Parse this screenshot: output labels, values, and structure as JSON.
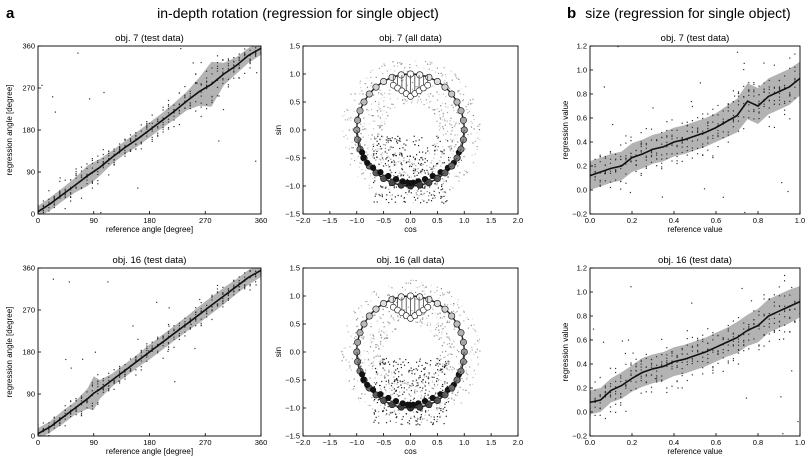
{
  "figure": {
    "panel_a_letter": "a",
    "panel_a_heading": "in-depth rotation (regression for single object)",
    "panel_b_letter": "b",
    "panel_b_heading": "size (regression for single object)"
  },
  "chart_data": [
    {
      "id": "a1",
      "type": "line",
      "title": "obj. 7 (test data)",
      "xlabel": "reference angle [degree]",
      "ylabel": "regression angle [degree]",
      "xlim": [
        0,
        360
      ],
      "ylim": [
        0,
        360
      ],
      "xticks": [
        "0",
        "90",
        "180",
        "270",
        "360"
      ],
      "yticks": [
        "0",
        "90",
        "180",
        "270",
        "360"
      ],
      "x": [
        0,
        20,
        40,
        60,
        80,
        100,
        120,
        140,
        160,
        180,
        200,
        220,
        240,
        260,
        280,
        300,
        320,
        340,
        360
      ],
      "series": [
        {
          "values": [
            5,
            22,
            42,
            62,
            82,
            100,
            122,
            142,
            160,
            180,
            200,
            220,
            242,
            262,
            278,
            300,
            318,
            340,
            355
          ]
        }
      ],
      "band_width": [
        12,
        14,
        14,
        16,
        22,
        18,
        14,
        14,
        16,
        16,
        16,
        18,
        20,
        30,
        48,
        24,
        18,
        16,
        14
      ],
      "grid": false
    },
    {
      "id": "a2",
      "type": "scatter",
      "title": "obj. 7 (all data)",
      "xlabel": "cos",
      "ylabel": "sin",
      "xlim": [
        -2.0,
        2.0
      ],
      "ylim": [
        -1.5,
        1.5
      ],
      "xticks": [
        "−2.0",
        "−1.5",
        "−1.0",
        "−0.5",
        "0.0",
        "0.5",
        "1.0",
        "1.5",
        "2.0"
      ],
      "yticks": [
        "−1.5",
        "−1.0",
        "−0.5",
        "0.0",
        "0.5",
        "1.0",
        "1.5"
      ],
      "circle_radius": 1.0,
      "grid": false
    },
    {
      "id": "b1",
      "type": "line",
      "title": "obj. 7 (test data)",
      "xlabel": "reference value",
      "ylabel": "regression value",
      "xlim": [
        0,
        1
      ],
      "ylim": [
        -0.2,
        1.2
      ],
      "xticks": [
        "0.0",
        "0.2",
        "0.4",
        "0.6",
        "0.8",
        "1.0"
      ],
      "yticks": [
        "−0.2",
        "0.0",
        "0.2",
        "0.4",
        "0.6",
        "0.8",
        "1.0",
        "1.2"
      ],
      "x": [
        0.0,
        0.05,
        0.1,
        0.15,
        0.2,
        0.25,
        0.3,
        0.35,
        0.4,
        0.45,
        0.5,
        0.55,
        0.6,
        0.65,
        0.7,
        0.75,
        0.8,
        0.85,
        0.9,
        0.95,
        1.0
      ],
      "series": [
        {
          "values": [
            0.12,
            0.15,
            0.18,
            0.2,
            0.27,
            0.3,
            0.34,
            0.36,
            0.4,
            0.42,
            0.45,
            0.48,
            0.52,
            0.57,
            0.62,
            0.74,
            0.7,
            0.78,
            0.82,
            0.86,
            0.93
          ]
        }
      ],
      "band_width": [
        0.12,
        0.12,
        0.12,
        0.12,
        0.12,
        0.12,
        0.12,
        0.12,
        0.12,
        0.12,
        0.12,
        0.12,
        0.12,
        0.13,
        0.14,
        0.15,
        0.15,
        0.15,
        0.15,
        0.15,
        0.14
      ],
      "grid": false
    },
    {
      "id": "a3",
      "type": "line",
      "title": "obj. 16 (test data)",
      "xlabel": "reference angle [degree]",
      "ylabel": "regression angle [degree]",
      "xlim": [
        0,
        360
      ],
      "ylim": [
        0,
        360
      ],
      "xticks": [
        "0",
        "90",
        "180",
        "270",
        "360"
      ],
      "yticks": [
        "0",
        "90",
        "180",
        "270",
        "360"
      ],
      "x": [
        0,
        20,
        40,
        60,
        80,
        90,
        100,
        120,
        140,
        160,
        180,
        200,
        220,
        240,
        260,
        280,
        300,
        320,
        340,
        360
      ],
      "series": [
        {
          "values": [
            5,
            20,
            40,
            60,
            80,
            92,
            100,
            120,
            140,
            160,
            180,
            200,
            220,
            240,
            260,
            280,
            300,
            320,
            340,
            355
          ]
        }
      ],
      "band_width": [
        12,
        12,
        14,
        14,
        22,
        36,
        20,
        14,
        14,
        14,
        16,
        16,
        16,
        16,
        18,
        18,
        18,
        16,
        16,
        14
      ],
      "grid": false
    },
    {
      "id": "a4",
      "type": "scatter",
      "title": "obj. 16 (all data)",
      "xlabel": "cos",
      "ylabel": "sin",
      "xlim": [
        -2.0,
        2.0
      ],
      "ylim": [
        -1.5,
        1.5
      ],
      "xticks": [
        "−2.0",
        "−1.5",
        "−1.0",
        "−0.5",
        "0.0",
        "0.5",
        "1.0",
        "1.5",
        "2.0"
      ],
      "yticks": [
        "−1.5",
        "−1.0",
        "−0.5",
        "0.0",
        "0.5",
        "1.0",
        "1.5"
      ],
      "circle_radius": 1.0,
      "grid": false
    },
    {
      "id": "b2",
      "type": "line",
      "title": "obj. 16 (test data)",
      "xlabel": "reference value",
      "ylabel": "regression value",
      "xlim": [
        0,
        1
      ],
      "ylim": [
        -0.2,
        1.2
      ],
      "xticks": [
        "0.0",
        "0.2",
        "0.4",
        "0.6",
        "0.8",
        "1.0"
      ],
      "yticks": [
        "−0.2",
        "0.0",
        "0.2",
        "0.4",
        "0.6",
        "0.8",
        "1.0",
        "1.2"
      ],
      "x": [
        0.0,
        0.05,
        0.1,
        0.15,
        0.2,
        0.25,
        0.3,
        0.35,
        0.4,
        0.45,
        0.5,
        0.55,
        0.6,
        0.65,
        0.7,
        0.75,
        0.8,
        0.85,
        0.9,
        0.95,
        1.0
      ],
      "series": [
        {
          "values": [
            0.08,
            0.1,
            0.18,
            0.22,
            0.28,
            0.33,
            0.36,
            0.38,
            0.42,
            0.44,
            0.47,
            0.5,
            0.54,
            0.58,
            0.62,
            0.68,
            0.72,
            0.8,
            0.84,
            0.88,
            0.92
          ]
        }
      ],
      "band_width": [
        0.1,
        0.1,
        0.1,
        0.11,
        0.11,
        0.12,
        0.12,
        0.12,
        0.12,
        0.12,
        0.12,
        0.12,
        0.12,
        0.12,
        0.13,
        0.13,
        0.14,
        0.14,
        0.14,
        0.14,
        0.13
      ],
      "grid": false
    }
  ]
}
